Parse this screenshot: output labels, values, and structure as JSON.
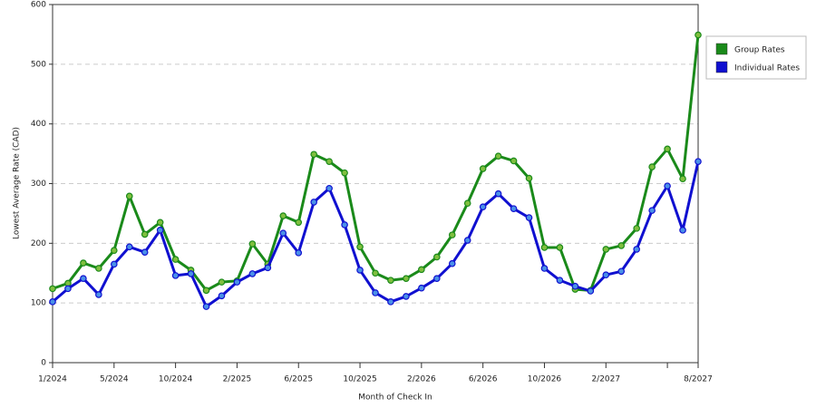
{
  "chart_data": {
    "type": "line",
    "x_label": "Month of Check In",
    "y_label": "Lowest Average Rate (CAD)",
    "categories": [
      "1/2024",
      null,
      null,
      null,
      "5/2024",
      null,
      null,
      null,
      "10/2024",
      null,
      null,
      null,
      "2/2025",
      null,
      null,
      null,
      "6/2025",
      null,
      null,
      null,
      "10/2025",
      null,
      null,
      null,
      "2/2026",
      null,
      null,
      null,
      "6/2026",
      null,
      null,
      null,
      "10/2026",
      null,
      null,
      null,
      "2/2027",
      null,
      null,
      null,
      null,
      null,
      "8/2027"
    ],
    "series": [
      {
        "name": "Group Rates",
        "color": "#1a8a1a",
        "marker_color": "#7fbf3f",
        "values": [
          124,
          133,
          167,
          158,
          188,
          279,
          215,
          235,
          173,
          155,
          121,
          135,
          137,
          199,
          165,
          246,
          235,
          349,
          337,
          318,
          194,
          150,
          138,
          141,
          156,
          177,
          214,
          267,
          325,
          346,
          338,
          309,
          193,
          193,
          123,
          121,
          190,
          196,
          225,
          328,
          358,
          308,
          549
        ]
      },
      {
        "name": "Individual Rates",
        "color": "#1010d0",
        "marker_color": "#4a90e8",
        "values": [
          102,
          124,
          141,
          114,
          165,
          194,
          185,
          222,
          146,
          149,
          94,
          112,
          135,
          149,
          159,
          217,
          184,
          269,
          292,
          231,
          155,
          117,
          102,
          111,
          125,
          141,
          166,
          205,
          261,
          283,
          258,
          243,
          158,
          138,
          128,
          120,
          147,
          153,
          190,
          255,
          296,
          222,
          337
        ]
      }
    ],
    "ylim": [
      0,
      600
    ],
    "yticks": [
      0,
      100,
      200,
      300,
      400,
      500,
      600
    ],
    "grid": true,
    "legend": "right"
  }
}
